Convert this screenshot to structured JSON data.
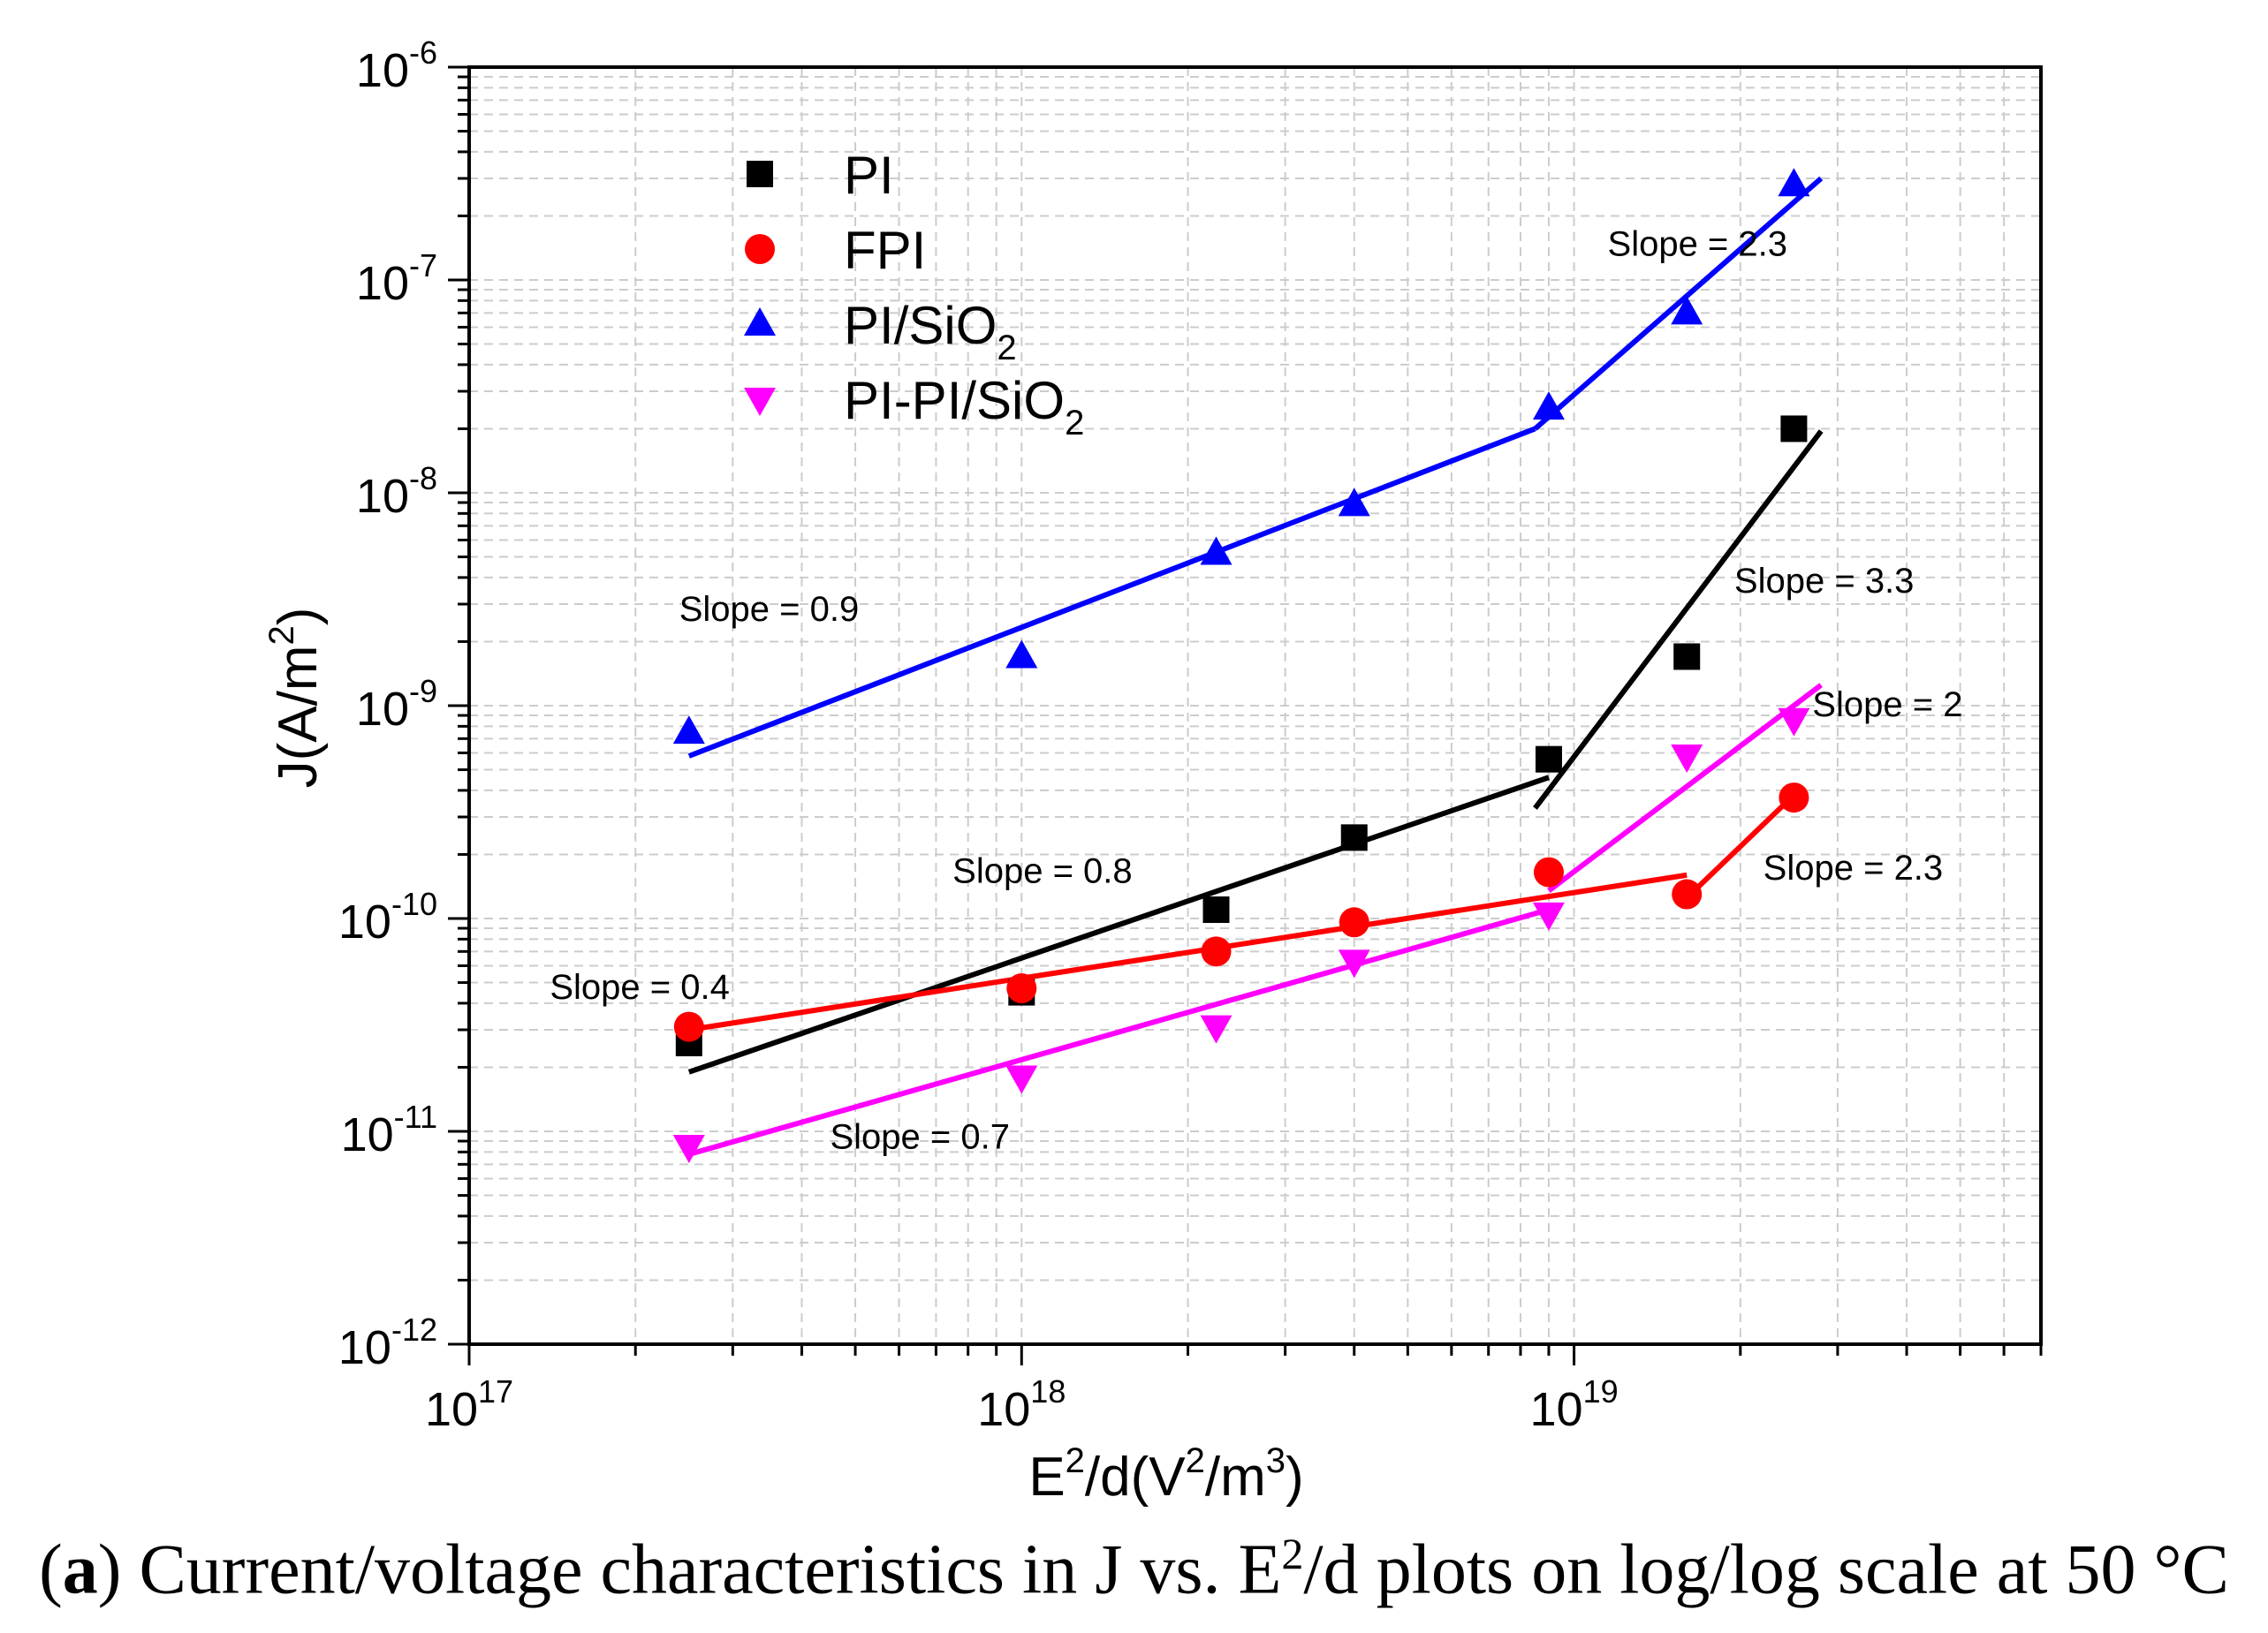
{
  "chart_data": {
    "type": "scatter",
    "xscale": "log",
    "yscale": "log",
    "xlim": [
      1e+17,
      7e+19
    ],
    "ylim": [
      1e-12,
      1e-06
    ],
    "grid": true,
    "xlabel": {
      "base": "E",
      "sup1": "2",
      "mid": "/d(V",
      "sup2": "2",
      "mid2": "/m",
      "sup3": "3",
      "end": ")"
    },
    "ylabel": {
      "base": "J(A/m",
      "sup": "2",
      "end": ")"
    },
    "x_ticks": [
      {
        "value": 1e+17,
        "base": "10",
        "exp": "17"
      },
      {
        "value": 1e+18,
        "base": "10",
        "exp": "18"
      },
      {
        "value": 1e+19,
        "base": "10",
        "exp": "19"
      }
    ],
    "y_ticks": [
      {
        "value": 1e-06,
        "base": "10",
        "exp": "-6"
      },
      {
        "value": 1e-07,
        "base": "10",
        "exp": "-7"
      },
      {
        "value": 1e-08,
        "base": "10",
        "exp": "-8"
      },
      {
        "value": 1e-09,
        "base": "10",
        "exp": "-9"
      },
      {
        "value": 1e-10,
        "base": "10",
        "exp": "-10"
      },
      {
        "value": 1e-11,
        "base": "10",
        "exp": "-11"
      },
      {
        "value": 1e-12,
        "base": "10",
        "exp": "-12"
      }
    ],
    "legend": [
      {
        "name": "PI",
        "series": 0
      },
      {
        "name": "FPI",
        "series": 1
      },
      {
        "name": "PI/SiO",
        "sub": "2",
        "series": 2
      },
      {
        "name": "PI-PI/SiO",
        "sub": "2",
        "series": 3
      }
    ],
    "series": [
      {
        "name": "PI",
        "color": "#000000",
        "marker": "square",
        "x": [
          2.5e+17,
          1e+18,
          2.25e+18,
          4e+18,
          9e+18,
          1.6e+19,
          2.5e+19
        ],
        "y": [
          2.6e-11,
          4.5e-11,
          1.1e-10,
          2.4e-10,
          5.6e-10,
          1.7e-09,
          2e-08
        ],
        "fits": [
          {
            "x": [
              2.5e+17,
              9e+18
            ],
            "y": [
              1.9e-11,
              4.6e-10
            ],
            "slope": "Slope = 0.8"
          },
          {
            "x": [
              8.5e+18,
              2.8e+19
            ],
            "y": [
              3.3e-10,
              1.95e-08
            ],
            "slope": "Slope = 3.3"
          }
        ]
      },
      {
        "name": "FPI",
        "color": "#ff0000",
        "marker": "circle",
        "x": [
          2.5e+17,
          1e+18,
          2.25e+18,
          4e+18,
          9e+18,
          1.6e+19,
          2.5e+19
        ],
        "y": [
          3.1e-11,
          4.7e-11,
          7e-11,
          9.6e-11,
          1.65e-10,
          1.3e-10,
          3.7e-10
        ],
        "fits": [
          {
            "x": [
              2.5e+17,
              1.6e+19
            ],
            "y": [
              3e-11,
              1.6e-10
            ],
            "slope": "Slope = 0.4"
          },
          {
            "x": [
              1.6e+19,
              2.5e+19
            ],
            "y": [
              1.25e-10,
              3.8e-10
            ],
            "slope": "Slope = 2.3"
          }
        ]
      },
      {
        "name": "PI/SiO2",
        "color": "#0000ff",
        "marker": "triangle-up",
        "x": [
          2.5e+17,
          1e+18,
          2.25e+18,
          4e+18,
          9e+18,
          1.6e+19,
          2.5e+19
        ],
        "y": [
          7.5e-10,
          1.7e-09,
          5.2e-09,
          8.8e-09,
          2.5e-08,
          7e-08,
          2.8e-07
        ],
        "fits": [
          {
            "x": [
              2.5e+17,
              8.5e+18
            ],
            "y": [
              5.8e-10,
              2e-08
            ],
            "slope": "Slope = 0.9"
          },
          {
            "x": [
              8.5e+18,
              2.8e+19
            ],
            "y": [
              2e-08,
              3e-07
            ],
            "slope": "Slope = 2.3"
          }
        ]
      },
      {
        "name": "PI-PI/SiO2",
        "color": "#ff00ff",
        "marker": "triangle-down",
        "x": [
          2.5e+17,
          1e+18,
          2.25e+18,
          4e+18,
          9e+18,
          1.6e+19,
          2.5e+19
        ],
        "y": [
          8.5e-12,
          1.8e-11,
          3.1e-11,
          6.3e-11,
          1.05e-10,
          5.8e-10,
          8.6e-10
        ],
        "fits": [
          {
            "x": [
              2.5e+17,
              9e+18
            ],
            "y": [
              7.8e-12,
              1.1e-10
            ],
            "slope": "Slope = 0.7"
          },
          {
            "x": [
              9e+18,
              2.8e+19
            ],
            "y": [
              1.35e-10,
              1.25e-09
            ],
            "slope": "Slope = 2"
          }
        ]
      }
    ],
    "annotations": [
      {
        "text": "Slope = 2.3",
        "x": 1.15e+19,
        "y": 1.3e-07
      },
      {
        "text": "Slope = 0.9",
        "x": 2.4e+17,
        "y": 2.5e-09
      },
      {
        "text": "Slope = 3.3",
        "x": 1.95e+19,
        "y": 3.4e-09
      },
      {
        "text": "Slope = 2",
        "x": 2.7e+19,
        "y": 8.9e-10
      },
      {
        "text": "Slope = 0.8",
        "x": 7.5e+17,
        "y": 1.47e-10
      },
      {
        "text": "Slope = 2.3",
        "x": 2.2e+19,
        "y": 1.52e-10
      },
      {
        "text": "Slope = 0.4",
        "x": 1.4e+17,
        "y": 4.2e-11
      },
      {
        "text": "Slope = 0.7",
        "x": 4.5e+17,
        "y": 8.3e-12
      }
    ]
  },
  "caption": {
    "label": "a",
    "text": " Current/voltage characteristics in J vs. E",
    "sup": "2",
    "text2": "/d plots on log/log scale at 50 °C"
  }
}
